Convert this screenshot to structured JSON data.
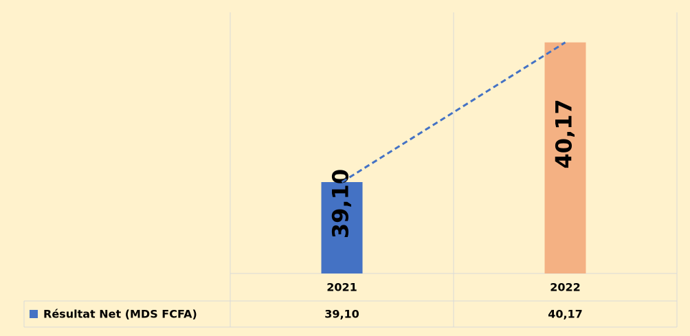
{
  "chart_data": {
    "type": "bar",
    "categories": [
      "2021",
      "2022"
    ],
    "series": [
      {
        "name": "Résultat Net (MDS FCFA)",
        "color": "#4472C4",
        "colors": [
          "#4472C4",
          "#F4B183"
        ],
        "values": [
          39.1,
          40.17
        ],
        "value_labels": [
          "39,10",
          "40,17"
        ]
      }
    ],
    "ylim": [
      38.4,
      40.4
    ],
    "trendline": {
      "color": "#4472C4",
      "dash": true
    },
    "data_table": true
  }
}
